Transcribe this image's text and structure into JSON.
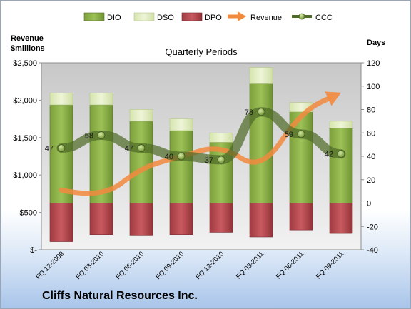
{
  "chart_data": {
    "type": "bar",
    "title": "Quarterly Periods",
    "company": "Cliffs Natural Resources Inc.",
    "left_axis_title": [
      "Revenue",
      "$millions"
    ],
    "right_axis_title": "Days",
    "categories": [
      "FQ 12-2009",
      "FQ 03-2010",
      "FQ 06-2010",
      "FQ 09-2010",
      "FQ 12-2010",
      "FQ 03-2011",
      "FQ 06-2011",
      "FQ 09-2011"
    ],
    "left_axis": {
      "min": 0,
      "max": 2500,
      "step": 500,
      "tick_labels": [
        "$-",
        "$500",
        "$1,000",
        "$1,500",
        "$2,000",
        "$2,500"
      ]
    },
    "right_axis": {
      "min": -40,
      "max": 120,
      "step": 20,
      "tick_labels": [
        "-40",
        "-20",
        "0",
        "20",
        "40",
        "60",
        "80",
        "100",
        "120"
      ]
    },
    "series": [
      {
        "name": "DIO",
        "kind": "stacked-bar",
        "color": "#8cb048",
        "values": [
          84,
          84,
          70,
          62,
          52,
          102,
          78,
          64
        ]
      },
      {
        "name": "DSO",
        "kind": "stacked-bar",
        "color": "#e0ecc2",
        "values": [
          10,
          10,
          10,
          10,
          8,
          14,
          8,
          6
        ]
      },
      {
        "name": "DPO",
        "kind": "negative-bar",
        "color": "#b84a50",
        "values": [
          -33,
          -27,
          -28,
          -27,
          -25,
          -29,
          -23,
          -26
        ]
      },
      {
        "name": "Revenue",
        "kind": "arrow-line",
        "axis": "left",
        "color": "#f28a3e",
        "values": [
          800,
          680,
          1100,
          1250,
          1400,
          1050,
          1850,
          2100
        ]
      },
      {
        "name": "CCC",
        "kind": "line-markers",
        "axis": "right",
        "color": "#4f6b28",
        "values": [
          47,
          58,
          47,
          40,
          37,
          78,
          59,
          42
        ]
      }
    ],
    "grid": false,
    "legend_position": "top"
  }
}
